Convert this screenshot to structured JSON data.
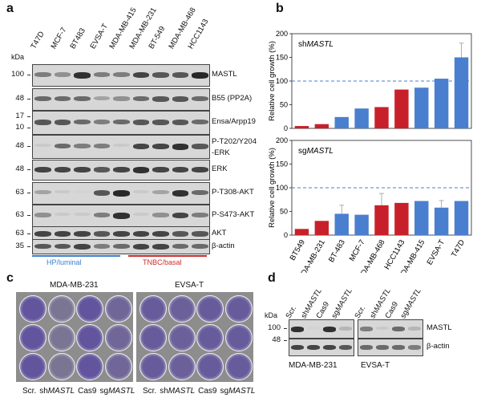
{
  "panels": {
    "a": "a",
    "b": "b",
    "c": "c",
    "d": "d"
  },
  "panel_a": {
    "kda_label": "kDa",
    "lanes": [
      "T47D",
      "MCF-7",
      "BT483",
      "EVSA-T",
      "MDA-MB-415",
      "MDA-MB-231",
      "BT-549",
      "MDA-MB-468",
      "HCC1143"
    ],
    "rows": [
      {
        "label": "MASTL",
        "kda": [
          "100"
        ]
      },
      {
        "label": "B55 (PP2A)",
        "kda": [
          "48"
        ]
      },
      {
        "label": "Ensa/Arpp19",
        "kda": [
          "17",
          "10"
        ]
      },
      {
        "label": "P-T202/Y204",
        "label2": "-ERK",
        "kda": [
          "48"
        ]
      },
      {
        "label": "ERK",
        "kda": [
          "48"
        ]
      },
      {
        "label": "P-T308-AKT",
        "kda": [
          "63"
        ]
      },
      {
        "label": "P-S473-AKT",
        "kda": [
          "63"
        ]
      },
      {
        "label": "AKT",
        "kda": [
          "63"
        ]
      },
      {
        "label": "β-actin",
        "kda": [
          "35"
        ]
      }
    ],
    "group_luminal": "HP/luminal",
    "group_basal": "TNBC/basal",
    "color_luminal": "#3a7fd0",
    "color_basal": "#d02a2a"
  },
  "chart_data": [
    {
      "type": "bar",
      "panel_title_prefix": "sh",
      "panel_title_italic": "MASTL",
      "ylabel": "Relative cell growth (%)",
      "ylim": [
        0,
        200
      ],
      "yticks": [
        0,
        50,
        100,
        150,
        200
      ],
      "reference_line": 100,
      "categories": [
        "BT549",
        "MDA-MB-231",
        "BT-483",
        "MCF-7",
        "MDA-MB-468",
        "HCC1143",
        "MDA-MB-415",
        "EVSA-T",
        "T47D"
      ],
      "values": [
        5,
        9,
        24,
        42,
        45,
        82,
        86,
        105,
        150
      ],
      "errors": [
        0,
        0,
        0,
        0,
        0,
        0,
        0,
        0,
        30
      ],
      "bar_colors": [
        "#c8202a",
        "#c8202a",
        "#4a7fcf",
        "#4a7fcf",
        "#c8202a",
        "#c8202a",
        "#4a7fcf",
        "#4a7fcf",
        "#4a7fcf"
      ]
    },
    {
      "type": "bar",
      "panel_title_prefix": "sg",
      "panel_title_italic": "MASTL",
      "ylabel": "Relative cell growth (%)",
      "ylim": [
        0,
        200
      ],
      "yticks": [
        0,
        50,
        100,
        150,
        200
      ],
      "reference_line": 100,
      "categories": [
        "BT549",
        "MDA-MB-231",
        "BT-483",
        "MCF-7",
        "MDA-MB-468",
        "HCC1143",
        "MDA-MB-415",
        "EVSA-T",
        "T47D"
      ],
      "values": [
        13,
        30,
        45,
        43,
        63,
        68,
        72,
        58,
        72
      ],
      "errors": [
        0,
        0,
        18,
        0,
        25,
        0,
        0,
        15,
        0
      ],
      "bar_colors": [
        "#c8202a",
        "#c8202a",
        "#4a7fcf",
        "#4a7fcf",
        "#c8202a",
        "#c8202a",
        "#4a7fcf",
        "#4a7fcf",
        "#4a7fcf"
      ]
    }
  ],
  "panel_c": {
    "title_left": "MDA-MB-231",
    "title_right": "EVSA-T",
    "labels": [
      {
        "pre": "Scr.",
        "it": ""
      },
      {
        "pre": "sh",
        "it": "MASTL"
      },
      {
        "pre": "Cas9",
        "it": ""
      },
      {
        "pre": "sg",
        "it": "MASTL"
      }
    ],
    "colony_density_left": [
      0.85,
      0.15,
      0.85,
      0.45
    ],
    "colony_density_right": [
      0.7,
      0.6,
      0.7,
      0.7
    ],
    "stain_color": "#5a4aa0"
  },
  "panel_d": {
    "kda_label": "kDa",
    "lanes": [
      {
        "pre": "Scr.",
        "it": ""
      },
      {
        "pre": "sh",
        "it": "MASTL"
      },
      {
        "pre": "Cas9",
        "it": ""
      },
      {
        "pre": "sg",
        "it": "MASTL"
      }
    ],
    "rows": [
      {
        "label": "MASTL",
        "kda": "100"
      },
      {
        "label": "β-actin",
        "kda": "48"
      }
    ],
    "cell_lines": [
      "MDA-MB-231",
      "EVSA-T"
    ]
  }
}
